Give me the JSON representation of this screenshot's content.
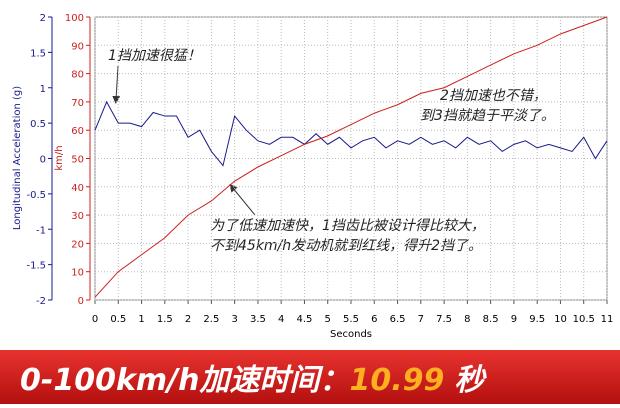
{
  "chart_data": {
    "type": "line",
    "xlabel": "Seconds",
    "ylabel": "Longitudinal Acceleration (g)",
    "y2label": "km/h",
    "xlim": [
      0,
      11
    ],
    "xticks": [
      0,
      0.5,
      1,
      1.5,
      2,
      2.5,
      3,
      3.5,
      4,
      4.5,
      5,
      5.5,
      6,
      6.5,
      7,
      7.5,
      8,
      8.5,
      9,
      9.5,
      10,
      10.5,
      11
    ],
    "ylim": [
      -2,
      2
    ],
    "yticks": [
      -2,
      -1.5,
      -1,
      -0.5,
      0,
      0.5,
      1,
      1.5,
      2
    ],
    "y2lim": [
      0,
      100
    ],
    "y2ticks": [
      0,
      10,
      20,
      30,
      40,
      50,
      60,
      70,
      80,
      90,
      100
    ],
    "grid": true,
    "series": [
      {
        "color": "#1a1a8c",
        "x": [
          0,
          0.25,
          0.5,
          0.75,
          1,
          1.25,
          1.5,
          1.75,
          2,
          2.25,
          2.5,
          2.75,
          3,
          3.25,
          3.5,
          3.75,
          4,
          4.25,
          4.5,
          4.75,
          5,
          5.25,
          5.5,
          5.75,
          6,
          6.25,
          6.5,
          6.75,
          7,
          7.25,
          7.5,
          7.75,
          8,
          8.25,
          8.5,
          8.75,
          9,
          9.25,
          9.5,
          9.75,
          10,
          10.25,
          10.5,
          10.75,
          11
        ],
        "values": [
          0.4,
          0.8,
          0.5,
          0.5,
          0.45,
          0.65,
          0.6,
          0.6,
          0.3,
          0.4,
          0.1,
          -0.1,
          0.6,
          0.4,
          0.25,
          0.2,
          0.3,
          0.3,
          0.2,
          0.35,
          0.2,
          0.3,
          0.15,
          0.25,
          0.3,
          0.15,
          0.25,
          0.2,
          0.3,
          0.2,
          0.25,
          0.15,
          0.3,
          0.2,
          0.25,
          0.1,
          0.2,
          0.25,
          0.15,
          0.2,
          0.15,
          0.1,
          0.3,
          0.0,
          0.25
        ]
      },
      {
        "color": "#cc1f1f",
        "axis": "y2",
        "x": [
          0,
          0.5,
          1,
          1.5,
          2,
          2.5,
          3,
          3.5,
          4,
          4.5,
          5,
          5.5,
          6,
          6.5,
          7,
          7.5,
          8,
          8.5,
          9,
          9.5,
          10,
          10.5,
          11
        ],
        "values": [
          1,
          10,
          16,
          22,
          30,
          35,
          42,
          47,
          51,
          55,
          58,
          62,
          66,
          69,
          73,
          75,
          79,
          83,
          87,
          90,
          94,
          97,
          100
        ]
      }
    ],
    "annotations": [
      "1挡加速很猛！",
      "2挡加速也不错，",
      "到3挡就趋于平淡了。",
      "为了低速加速快，1挡齿比被设计得比较大，",
      "不到45km/h发动机就到红线，得升2挡了。"
    ]
  },
  "banner": {
    "label": "0-100km/h加速时间：",
    "value": 10.99,
    "unit": "秒"
  }
}
